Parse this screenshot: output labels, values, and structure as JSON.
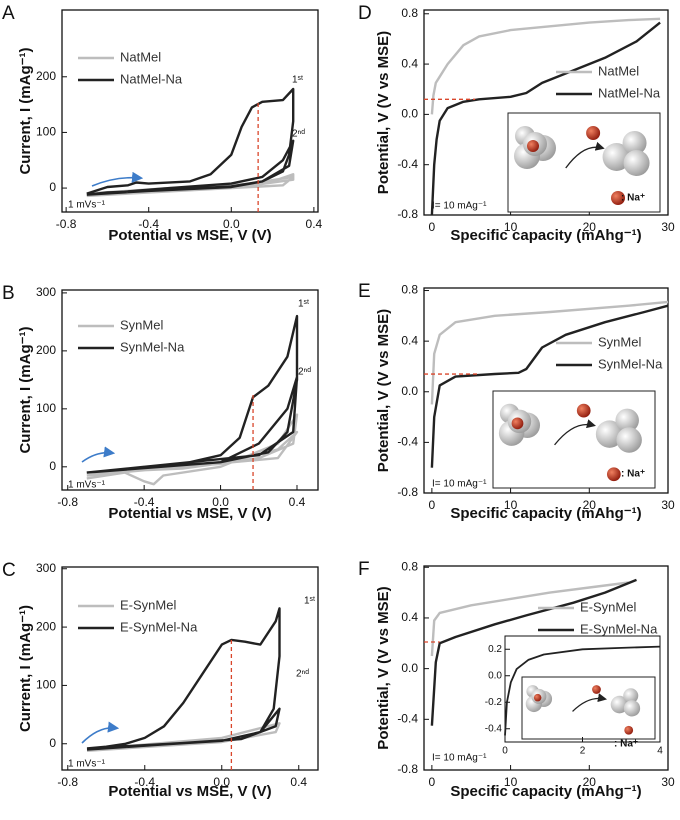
{
  "chart_data": [
    {
      "type": "line",
      "panel": "A",
      "xlabel": "Potential vs MSE, V (V)",
      "ylabel": "Current, I (mAg⁻¹)",
      "xlim": [
        -0.82,
        0.42
      ],
      "ylim": [
        -43,
        320
      ],
      "xticks": [
        -0.8,
        -0.4,
        {
          "value": 0,
          "label": "0.0"
        },
        0.4
      ],
      "yticks": [
        0,
        100,
        200
      ],
      "series": [
        {
          "name": "NatMel",
          "color": "#bdbdbd",
          "x": [
            -0.7,
            -0.3,
            0,
            0.2,
            0.3,
            0.3,
            0,
            -0.4,
            -0.7,
            null,
            -0.7,
            0,
            0.3,
            0.25,
            -0.7
          ],
          "values": [
            -10,
            0,
            5,
            12,
            25,
            15,
            0,
            -6,
            -12,
            null,
            -12,
            3,
            20,
            5,
            -14
          ]
        },
        {
          "name": "NatMel-Na",
          "color": "#222222",
          "x": [
            -0.7,
            -0.6,
            -0.5,
            -0.46,
            -0.4,
            -0.2,
            -0.1,
            0,
            0.05,
            0.1,
            0.15,
            0.25,
            0.3,
            0.3,
            0.28,
            0.25,
            0.15,
            0,
            -0.3,
            -0.6,
            -0.7,
            null,
            -0.7,
            -0.3,
            0,
            0.15,
            0.25,
            0.3,
            0.28,
            0.15,
            0,
            -0.4,
            -0.7
          ],
          "values": [
            -10,
            2,
            5,
            10,
            8,
            12,
            25,
            60,
            110,
            145,
            155,
            158,
            178,
            120,
            60,
            30,
            12,
            3,
            -3,
            -8,
            -12,
            null,
            -12,
            0,
            8,
            20,
            50,
            85,
            40,
            12,
            2,
            -5,
            -12
          ]
        }
      ],
      "guide": {
        "orientation": "vertical",
        "x": 0.13,
        "y": 155,
        "color": "#d9462b"
      },
      "annotations": [
        "1ˢᵗ",
        "2ⁿᵈ",
        "1 mVs⁻¹"
      ]
    },
    {
      "type": "line",
      "panel": "B",
      "xlabel": "Potential vs MSE, V (V)",
      "ylabel": "Current, I (mAg⁻¹)",
      "xlim": [
        -0.83,
        0.51
      ],
      "ylim": [
        -40,
        305
      ],
      "xticks": [
        -0.8,
        -0.4,
        {
          "value": 0,
          "label": "0.0"
        },
        0.4
      ],
      "yticks": [
        0,
        100,
        200,
        300
      ],
      "series": [
        {
          "name": "SynMel",
          "color": "#bdbdbd",
          "x": [
            -0.7,
            -0.5,
            -0.4,
            -0.35,
            -0.3,
            0,
            0.3,
            0.4,
            0.38,
            0.2,
            -0.2,
            -0.7,
            null,
            -0.7,
            0,
            0.3,
            0.4,
            0.3,
            -0.7
          ],
          "values": [
            -20,
            -10,
            -25,
            -30,
            -15,
            0,
            40,
            90,
            40,
            15,
            -3,
            -10,
            null,
            -10,
            5,
            30,
            60,
            15,
            -15
          ]
        },
        {
          "name": "SynMel-Na",
          "color": "#222222",
          "x": [
            -0.7,
            -0.4,
            -0.2,
            0,
            0.1,
            0.15,
            0.17,
            0.25,
            0.35,
            0.4,
            0.4,
            0.35,
            0.25,
            0,
            -0.4,
            -0.7,
            null,
            -0.7,
            0,
            0.2,
            0.35,
            0.4,
            0.38,
            0.2,
            -0.7
          ],
          "values": [
            -10,
            0,
            5,
            20,
            50,
            100,
            120,
            140,
            190,
            260,
            150,
            60,
            25,
            8,
            -2,
            -10,
            null,
            -10,
            8,
            40,
            100,
            155,
            60,
            20,
            -10
          ]
        }
      ],
      "guide": {
        "orientation": "vertical",
        "x": 0.17,
        "y": 125,
        "color": "#d9462b"
      },
      "annotations": [
        "1ˢᵗ",
        "2ⁿᵈ",
        "1 mVs⁻¹"
      ]
    },
    {
      "type": "line",
      "panel": "C",
      "xlabel": "Potential vs MSE, V (V)",
      "ylabel": "Current, I (mAg⁻¹)",
      "xlim": [
        -0.83,
        0.5
      ],
      "ylim": [
        -45,
        303
      ],
      "xticks": [
        -0.8,
        -0.4,
        {
          "value": 0,
          "label": "0.0"
        },
        0.4
      ],
      "yticks": [
        0,
        100,
        200,
        300
      ],
      "series": [
        {
          "name": "E-SynMel",
          "color": "#bdbdbd",
          "x": [
            -0.7,
            0,
            0.3,
            0.28,
            0,
            -0.7
          ],
          "values": [
            -10,
            10,
            35,
            20,
            3,
            -12
          ]
        },
        {
          "name": "E-SynMel-Na",
          "color": "#222222",
          "x": [
            -0.7,
            -0.6,
            -0.5,
            -0.4,
            -0.3,
            -0.2,
            -0.1,
            0,
            0.05,
            0.12,
            0.2,
            0.28,
            0.3,
            0.3,
            0.27,
            0.2,
            0,
            -0.4,
            -0.7,
            null,
            -0.7,
            0,
            0.2,
            0.3,
            0.28,
            0.1,
            -0.7
          ],
          "values": [
            -8,
            -5,
            0,
            10,
            30,
            70,
            120,
            170,
            178,
            175,
            170,
            210,
            232,
            150,
            60,
            20,
            5,
            -3,
            -8,
            null,
            -8,
            5,
            20,
            60,
            30,
            8,
            -10
          ]
        }
      ],
      "guide": {
        "orientation": "vertical",
        "x": 0.05,
        "y": 178,
        "color": "#d9462b"
      },
      "annotations": [
        "1ˢᵗ",
        "2ⁿᵈ",
        "1 mVs⁻¹"
      ]
    },
    {
      "type": "line",
      "panel": "D",
      "xlabel": "Specific capacity (mAhg⁻¹)",
      "ylabel": "Potential, V (V vs MSE)",
      "xlim": [
        -1,
        30
      ],
      "ylim": [
        -0.8,
        0.83
      ],
      "xticks": [
        0,
        10,
        20,
        30
      ],
      "yticks": [
        -0.8,
        -0.4,
        {
          "value": 0,
          "label": "0.0"
        },
        0.4,
        0.8
      ],
      "series": [
        {
          "name": "NatMel",
          "color": "#bdbdbd",
          "x": [
            0,
            0.2,
            0.5,
            1,
            2,
            4,
            6,
            10,
            15,
            20,
            25,
            29
          ],
          "values": [
            0,
            0.15,
            0.25,
            0.3,
            0.4,
            0.55,
            0.62,
            0.67,
            0.7,
            0.73,
            0.75,
            0.76
          ]
        },
        {
          "name": "NatMel-Na",
          "color": "#222222",
          "x": [
            0,
            0.3,
            0.6,
            1,
            2,
            4,
            6,
            10,
            12,
            14,
            18,
            22,
            26,
            29
          ],
          "values": [
            -0.8,
            -0.4,
            -0.2,
            -0.05,
            0.05,
            0.1,
            0.12,
            0.14,
            0.17,
            0.25,
            0.35,
            0.45,
            0.58,
            0.73
          ]
        }
      ],
      "guide": {
        "orientation": "horizontal",
        "x": 5.5,
        "y": 0.12,
        "color": "#d9462b"
      },
      "annotations": [
        "I= 10 mAg⁻¹",
        ": Na⁺"
      ]
    },
    {
      "type": "line",
      "panel": "E",
      "xlabel": "Specific capacity (mAhg⁻¹)",
      "ylabel": "Potential, V (V vs MSE)",
      "xlim": [
        -1,
        30
      ],
      "ylim": [
        -0.8,
        0.82
      ],
      "xticks": [
        0,
        10,
        20,
        30
      ],
      "yticks": [
        -0.8,
        -0.4,
        {
          "value": 0,
          "label": "0.0"
        },
        0.4,
        0.8
      ],
      "series": [
        {
          "name": "SynMel",
          "color": "#bdbdbd",
          "x": [
            0,
            0.3,
            1,
            3,
            8,
            15,
            25,
            30
          ],
          "values": [
            -0.1,
            0.3,
            0.45,
            0.55,
            0.6,
            0.63,
            0.68,
            0.71
          ]
        },
        {
          "name": "SynMel-Na",
          "color": "#222222",
          "x": [
            0,
            0.3,
            1,
            3,
            8,
            11,
            12,
            14,
            17,
            22,
            27,
            30
          ],
          "values": [
            -0.6,
            -0.2,
            0.05,
            0.12,
            0.14,
            0.15,
            0.18,
            0.35,
            0.45,
            0.55,
            0.63,
            0.68
          ]
        }
      ],
      "guide": {
        "orientation": "horizontal",
        "x": 6,
        "y": 0.14,
        "color": "#d9462b"
      },
      "annotations": [
        "I= 10 mAg⁻¹",
        ": Na⁺"
      ]
    },
    {
      "type": "line",
      "panel": "F",
      "xlabel": "Specific capacity (mAhg⁻¹)",
      "ylabel": "Potential, V (V vs MSE)",
      "xlim": [
        -1,
        30
      ],
      "ylim": [
        -0.8,
        0.81
      ],
      "xticks": [
        0,
        10,
        20,
        30
      ],
      "yticks": [
        -0.8,
        -0.4,
        {
          "value": 0,
          "label": "0.0"
        },
        0.4,
        0.8
      ],
      "series": [
        {
          "name": "E-SynMel",
          "color": "#bdbdbd",
          "x": [
            0,
            0.3,
            1,
            5,
            10,
            15,
            20,
            25
          ],
          "values": [
            0.1,
            0.38,
            0.44,
            0.5,
            0.55,
            0.6,
            0.64,
            0.68
          ]
        },
        {
          "name": "E-SynMel-Na",
          "color": "#222222",
          "x": [
            0,
            0.5,
            1,
            3,
            8,
            12,
            18,
            22,
            26
          ],
          "values": [
            -0.45,
            0.05,
            0.2,
            0.25,
            0.35,
            0.42,
            0.52,
            0.6,
            0.7
          ]
        }
      ],
      "guide": {
        "orientation": "horizontal",
        "x": 1,
        "y": 0.21,
        "color": "#d9462b"
      },
      "annotations": [
        "I= 10 mAg⁻¹",
        ": Na⁺"
      ],
      "inset": {
        "type": "line",
        "xlim": [
          0,
          4
        ],
        "ylim": [
          -0.5,
          0.3
        ],
        "xticks": [
          0,
          2,
          4
        ],
        "yticks": [
          -0.4,
          -0.2,
          {
            "value": 0,
            "label": "0.0"
          },
          0.2
        ],
        "series": [
          {
            "color": "#222222",
            "x": [
              0,
              0.05,
              0.15,
              0.3,
              0.6,
              1,
              2,
              3,
              4
            ],
            "values": [
              -0.45,
              -0.2,
              -0.05,
              0.05,
              0.12,
              0.16,
              0.2,
              0.21,
              0.22
            ]
          }
        ]
      }
    }
  ]
}
